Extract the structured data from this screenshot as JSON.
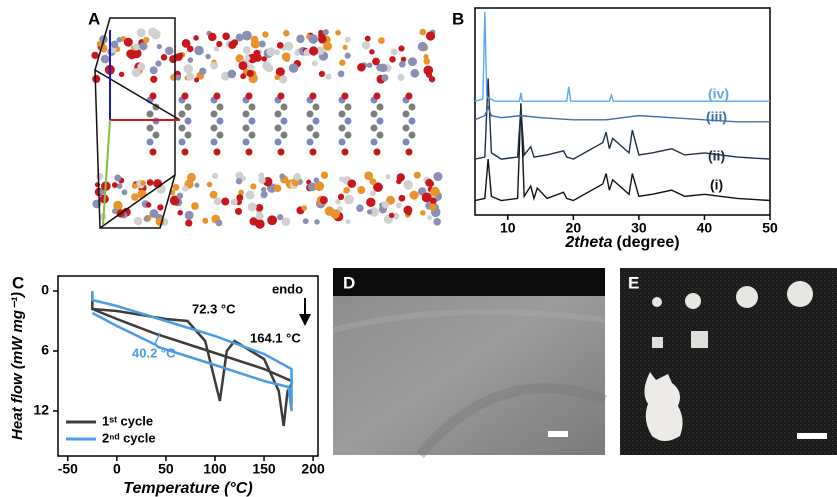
{
  "panel_labels": [
    "A",
    "D",
    "E"
  ],
  "chart_data": [
    {
      "type": "line",
      "label": "B",
      "x_label_italic": "2theta",
      "x_label": "(degree)",
      "xlim": [
        5,
        50
      ],
      "xticks": [
        10,
        20,
        30,
        40,
        50
      ],
      "ylim": [
        0,
        100
      ],
      "series": [
        {
          "name": "(i)",
          "color": "#111111",
          "x": [
            5,
            6.5,
            7,
            7.5,
            9,
            11.5,
            12,
            12.5,
            13.5,
            14,
            14.5,
            16,
            18.5,
            19,
            20,
            24.5,
            25,
            25.5,
            26,
            28.5,
            29,
            30,
            32,
            35,
            37,
            40,
            45,
            50
          ],
          "values": [
            7,
            8,
            27,
            9,
            7,
            8,
            54,
            9,
            14,
            8,
            13,
            8,
            11,
            8,
            7,
            15,
            20,
            12,
            17,
            10,
            20,
            9,
            10,
            12,
            9,
            10,
            8,
            7
          ]
        },
        {
          "name": "(ii)",
          "color": "#1f3048",
          "x": [
            5,
            6.5,
            7,
            7.5,
            9,
            11.5,
            12,
            12.5,
            13.5,
            14,
            16,
            18.5,
            19,
            20,
            24.5,
            25,
            25.5,
            26,
            28.5,
            29,
            30,
            32,
            35,
            37,
            40,
            45,
            50
          ],
          "values": [
            27,
            28,
            66,
            30,
            27,
            28,
            52,
            29,
            33,
            28,
            29,
            31,
            28,
            27,
            35,
            40,
            32,
            37,
            30,
            41,
            29,
            30,
            32,
            29,
            30,
            28,
            27
          ]
        },
        {
          "name": "(iii)",
          "color": "#3f6fa3",
          "x": [
            5,
            6.5,
            7,
            7.5,
            9,
            12,
            15,
            20,
            25,
            30,
            35,
            40,
            45,
            50
          ],
          "values": [
            46,
            48,
            52,
            48,
            47,
            48,
            47,
            46,
            46,
            48,
            47,
            46,
            45,
            45
          ]
        },
        {
          "name": "(iv)",
          "color": "#5ba8ee",
          "x": [
            5,
            6.2,
            6.5,
            6.8,
            8,
            11.8,
            12,
            12.2,
            19,
            19.3,
            19.6,
            25.5,
            25.8,
            26.1,
            30,
            35,
            40,
            45,
            50
          ],
          "values": [
            55,
            56,
            98,
            57,
            55,
            55,
            59,
            55,
            55,
            62,
            55,
            55,
            58,
            55,
            55,
            55,
            55,
            55,
            55
          ]
        }
      ]
    },
    {
      "type": "line",
      "label": "C",
      "x_label": "Temperature (°C)",
      "y_label": "Heat flow (mW mg⁻¹)",
      "xlim": [
        -60,
        205
      ],
      "xticks": [
        -50,
        0,
        50,
        100,
        150,
        200
      ],
      "ylim": [
        -1.5,
        16.5
      ],
      "y_inverted": true,
      "yticks": [
        0,
        6,
        12
      ],
      "annotations": [
        "72.3 °C",
        "164.1 °C",
        "40.2 °C",
        "endo"
      ],
      "legend": "lower left",
      "series": [
        {
          "name": "1ˢᵗ cycle",
          "color": "#3c3c3c",
          "x": [
            -25,
            -25,
            0,
            50,
            72,
            90,
            100,
            105,
            112,
            120,
            150,
            165,
            170,
            174,
            178,
            178,
            150,
            100,
            40,
            0,
            -25
          ],
          "values": [
            0.3,
            1.8,
            2.0,
            2.8,
            3.0,
            5.0,
            9.0,
            11.0,
            6.0,
            5.0,
            6.8,
            10.0,
            13.5,
            10.0,
            9.3,
            9.0,
            7.8,
            6.2,
            4.3,
            2.8,
            1.8
          ]
        },
        {
          "name": "2ⁿᵈ cycle",
          "color": "#4a9be8",
          "x": [
            -25,
            -25,
            0,
            50,
            100,
            150,
            178,
            178,
            175,
            150,
            100,
            42,
            40,
            0,
            -25
          ],
          "values": [
            0,
            0.9,
            1.5,
            3.0,
            4.5,
            6.3,
            7.8,
            12.0,
            9.6,
            9.0,
            7.4,
            5.6,
            5.4,
            3.5,
            2.2
          ]
        }
      ]
    }
  ]
}
